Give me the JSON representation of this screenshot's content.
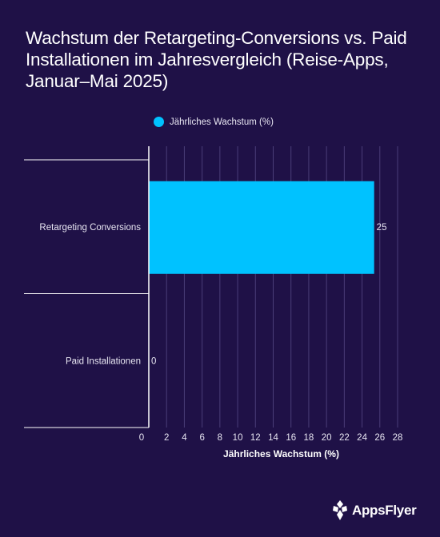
{
  "colors": {
    "background": "#1f1147",
    "bar": "#00c2ff",
    "axis": "#ffffff",
    "grid": "#4a3d78",
    "text": "#ffffff"
  },
  "brand": {
    "name": "AppsFlyer",
    "icon": "appsflyer-logo-icon"
  },
  "chart_data": {
    "type": "bar",
    "orientation": "horizontal",
    "title": "Wachstum der Retargeting-Conversions vs. Paid Installationen im Jahresvergleich (Reise-Apps, Januar–Mai 2025)",
    "categories": [
      "Retargeting Conversions",
      "Paid Installationen"
    ],
    "series": [
      {
        "name": "Jährliches Wachstum (%)",
        "values": [
          25,
          0
        ]
      }
    ],
    "data_labels": [
      "25",
      "0"
    ],
    "xlabel": "Jährliches Wachstum (%)",
    "ylabel": "",
    "xlim": [
      0,
      28
    ],
    "xticks": [
      0,
      2,
      4,
      6,
      8,
      10,
      12,
      14,
      16,
      18,
      20,
      22,
      24,
      26,
      28
    ],
    "grid": "vertical",
    "legend_position": "top"
  }
}
